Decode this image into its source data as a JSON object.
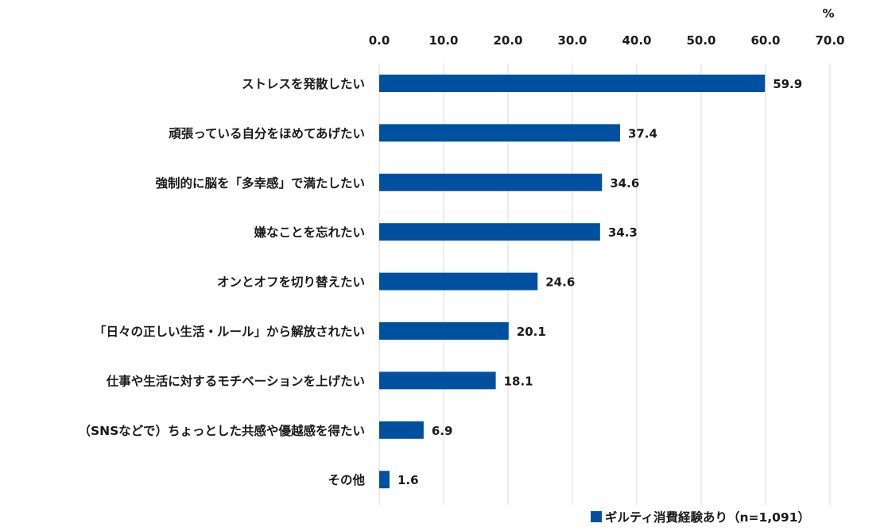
{
  "chart_data": {
    "type": "bar",
    "orientation": "horizontal",
    "unit": "%",
    "categories": [
      "ストレスを発散したい",
      "頑張っている自分をほめてあげたい",
      "強制的に脳を「多幸感」で満たしたい",
      "嫌なことを忘れたい",
      "オンとオフを切り替えたい",
      "「日々の正しい生活・ルール」から解放されたい",
      "仕事や生活に対するモチベーションを上げたい",
      "（SNSなどで）ちょっとした共感や優越感を得たい",
      "その他"
    ],
    "series": [
      {
        "name": "ギルティ消費経験あり（n=1,091）",
        "values": [
          59.9,
          37.4,
          34.6,
          34.3,
          24.6,
          20.1,
          18.1,
          6.9,
          1.6
        ],
        "value_labels": [
          "59.9",
          "37.4",
          "34.6",
          "34.3",
          "24.6",
          "20.1",
          "18.1",
          "6.9",
          "1.6"
        ]
      }
    ],
    "xlim": [
      0,
      70
    ],
    "xticks": [
      0,
      10,
      20,
      30,
      40,
      50,
      60,
      70
    ],
    "xtick_labels": [
      "0.0",
      "10.0",
      "20.0",
      "30.0",
      "40.0",
      "50.0",
      "60.0",
      "70.0"
    ],
    "xaxis_position": "top",
    "grid": true,
    "legend_position": "bottom-right",
    "bar_color": "#0050a0",
    "grid_color": "#d9d9d9"
  }
}
